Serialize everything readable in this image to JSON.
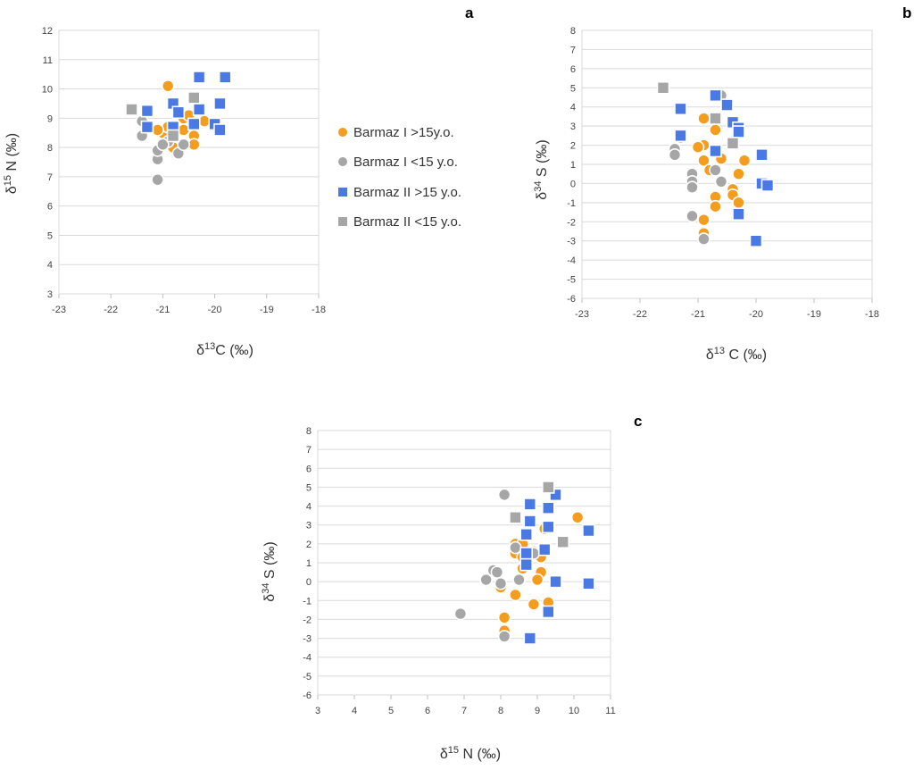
{
  "legend": {
    "items": [
      {
        "label": "Barmaz I >15y.o.",
        "color": "#F39C1E",
        "shape": "circle"
      },
      {
        "label": "Barmaz I <15 y.o.",
        "color": "#A6A6A6",
        "shape": "circle"
      },
      {
        "label": "Barmaz II >15 y.o.",
        "color": "#4A79E3",
        "shape": "square"
      },
      {
        "label": "Barmaz II <15 y.o.",
        "color": "#A6A6A6",
        "shape": "square"
      }
    ]
  },
  "chart_data": [
    {
      "panel": "a",
      "type": "scatter",
      "title": "",
      "xlabel_main": "δ",
      "xlabel_sup": "13",
      "xlabel_rest": "C (‰)",
      "ylabel_main": "δ",
      "ylabel_sup": "15",
      "ylabel_rest": " N (‰)",
      "xlim": [
        -23,
        -18
      ],
      "ylim": [
        3,
        12
      ],
      "xticks": [
        "-23",
        "-22",
        "-21",
        "-20",
        "-19",
        "-18"
      ],
      "yticks": [
        "3",
        "4",
        "5",
        "6",
        "7",
        "8",
        "9",
        "10",
        "11",
        "12"
      ],
      "series": [
        {
          "name": "Barmaz I >15y.o.",
          "points": [
            [
              -20.9,
              10.1
            ],
            [
              -21.0,
              8.5
            ],
            [
              -20.9,
              8.7
            ],
            [
              -20.8,
              8.2
            ],
            [
              -20.7,
              9.2
            ],
            [
              -20.6,
              9.0
            ],
            [
              -20.5,
              9.1
            ],
            [
              -20.4,
              8.8
            ],
            [
              -20.4,
              8.4
            ],
            [
              -20.4,
              8.1
            ],
            [
              -20.2,
              8.9
            ],
            [
              -20.6,
              8.6
            ],
            [
              -21.1,
              8.6
            ],
            [
              -20.8,
              8.0
            ]
          ]
        },
        {
          "name": "Barmaz I <15 y.o.",
          "points": [
            [
              -21.1,
              6.9
            ],
            [
              -21.1,
              7.6
            ],
            [
              -21.1,
              7.9
            ],
            [
              -21.4,
              8.4
            ],
            [
              -21.4,
              8.9
            ],
            [
              -20.9,
              8.2
            ],
            [
              -20.7,
              7.8
            ],
            [
              -20.6,
              8.1
            ],
            [
              -21.0,
              8.1
            ]
          ]
        },
        {
          "name": "Barmaz II >15 y.o.",
          "points": [
            [
              -20.3,
              10.4
            ],
            [
              -19.8,
              10.4
            ],
            [
              -20.8,
              9.5
            ],
            [
              -19.9,
              9.5
            ],
            [
              -20.7,
              9.2
            ],
            [
              -20.3,
              9.3
            ],
            [
              -21.3,
              9.25
            ],
            [
              -21.3,
              8.7
            ],
            [
              -20.8,
              8.7
            ],
            [
              -20.4,
              8.8
            ],
            [
              -20.0,
              8.8
            ],
            [
              -19.9,
              8.6
            ]
          ]
        },
        {
          "name": "Barmaz II <15 y.o.",
          "points": [
            [
              -21.6,
              9.3
            ],
            [
              -20.4,
              9.7
            ],
            [
              -20.8,
              8.4
            ]
          ]
        }
      ]
    },
    {
      "panel": "b",
      "type": "scatter",
      "title": "",
      "xlabel_main": "δ",
      "xlabel_sup": "13",
      "xlabel_rest": " C (‰)",
      "ylabel_main": "δ",
      "ylabel_sup": "34",
      "ylabel_rest": " S (‰)",
      "xlim": [
        -23,
        -18
      ],
      "ylim": [
        -6,
        8
      ],
      "xticks": [
        "-23",
        "-22",
        "-21",
        "-20",
        "-19",
        "-18"
      ],
      "yticks": [
        "-6",
        "-5",
        "-4",
        "-3",
        "-2",
        "-1",
        "0",
        "1",
        "2",
        "3",
        "4",
        "5",
        "6",
        "7",
        "8"
      ],
      "series": [
        {
          "name": "Barmaz I >15y.o.",
          "points": [
            [
              -20.9,
              3.4
            ],
            [
              -20.7,
              2.8
            ],
            [
              -20.9,
              2.0
            ],
            [
              -21.3,
              2.4
            ],
            [
              -20.6,
              1.3
            ],
            [
              -20.2,
              1.2
            ],
            [
              -20.9,
              1.2
            ],
            [
              -20.8,
              0.7
            ],
            [
              -20.3,
              0.5
            ],
            [
              -20.4,
              -0.3
            ],
            [
              -20.4,
              -0.6
            ],
            [
              -20.3,
              -1.0
            ],
            [
              -20.7,
              -0.7
            ],
            [
              -20.7,
              -1.2
            ],
            [
              -20.9,
              -1.9
            ],
            [
              -20.9,
              -2.6
            ],
            [
              -20.5,
              4.1
            ],
            [
              -21.0,
              1.9
            ]
          ]
        },
        {
          "name": "Barmaz I <15 y.o.",
          "points": [
            [
              -20.6,
              4.6
            ],
            [
              -21.4,
              1.8
            ],
            [
              -21.4,
              1.5
            ],
            [
              -21.1,
              0.5
            ],
            [
              -21.1,
              0.1
            ],
            [
              -21.1,
              -0.2
            ],
            [
              -20.7,
              0.7
            ],
            [
              -20.6,
              0.1
            ],
            [
              -21.1,
              -1.7
            ],
            [
              -20.9,
              -2.9
            ]
          ]
        },
        {
          "name": "Barmaz II >15 y.o.",
          "points": [
            [
              -20.7,
              4.6
            ],
            [
              -20.5,
              4.1
            ],
            [
              -21.3,
              3.9
            ],
            [
              -20.4,
              3.2
            ],
            [
              -20.3,
              2.9
            ],
            [
              -20.3,
              2.7
            ],
            [
              -21.3,
              2.5
            ],
            [
              -20.7,
              1.7
            ],
            [
              -19.9,
              1.5
            ],
            [
              -19.9,
              0.0
            ],
            [
              -19.8,
              -0.1
            ],
            [
              -20.3,
              -1.6
            ],
            [
              -20.0,
              -3.0
            ]
          ]
        },
        {
          "name": "Barmaz II <15 y.o.",
          "points": [
            [
              -21.6,
              5.0
            ],
            [
              -20.7,
              3.4
            ],
            [
              -20.4,
              2.1
            ]
          ]
        }
      ]
    },
    {
      "panel": "c",
      "type": "scatter",
      "title": "",
      "xlabel_main": "δ",
      "xlabel_sup": "15",
      "xlabel_rest": " N (‰)",
      "ylabel_main": "δ",
      "ylabel_sup": "34",
      "ylabel_rest": " S (‰)",
      "xlim": [
        3,
        11
      ],
      "ylim": [
        -6,
        8
      ],
      "xticks": [
        "3",
        "4",
        "5",
        "6",
        "7",
        "8",
        "9",
        "10",
        "11"
      ],
      "yticks": [
        "-6",
        "-5",
        "-4",
        "-3",
        "-2",
        "-1",
        "0",
        "1",
        "2",
        "3",
        "4",
        "5",
        "6",
        "7",
        "8"
      ],
      "series": [
        {
          "name": "Barmaz I >15y.o.",
          "points": [
            [
              10.1,
              3.4
            ],
            [
              9.2,
              2.8
            ],
            [
              8.4,
              2.0
            ],
            [
              8.6,
              2.0
            ],
            [
              8.4,
              1.5
            ],
            [
              8.6,
              1.3
            ],
            [
              9.1,
              1.3
            ],
            [
              8.6,
              0.7
            ],
            [
              9.1,
              0.5
            ],
            [
              9.0,
              0.1
            ],
            [
              8.0,
              -0.3
            ],
            [
              8.4,
              -0.7
            ],
            [
              9.3,
              -1.1
            ],
            [
              8.9,
              -1.2
            ],
            [
              8.1,
              -1.9
            ],
            [
              8.1,
              -2.6
            ],
            [
              8.9,
              1.6
            ],
            [
              8.7,
              1.0
            ]
          ]
        },
        {
          "name": "Barmaz I <15 y.o.",
          "points": [
            [
              8.1,
              4.6
            ],
            [
              8.4,
              1.8
            ],
            [
              7.8,
              0.6
            ],
            [
              7.9,
              0.5
            ],
            [
              7.6,
              0.1
            ],
            [
              8.5,
              0.1
            ],
            [
              8.0,
              -0.1
            ],
            [
              6.9,
              -1.7
            ],
            [
              8.1,
              -2.9
            ],
            [
              8.9,
              1.5
            ]
          ]
        },
        {
          "name": "Barmaz II >15 y.o.",
          "points": [
            [
              9.5,
              4.6
            ],
            [
              8.8,
              4.1
            ],
            [
              9.3,
              3.9
            ],
            [
              8.8,
              3.2
            ],
            [
              9.3,
              2.9
            ],
            [
              10.4,
              2.7
            ],
            [
              8.7,
              2.5
            ],
            [
              9.2,
              1.7
            ],
            [
              8.7,
              1.5
            ],
            [
              8.7,
              0.9
            ],
            [
              9.5,
              0.0
            ],
            [
              10.4,
              -0.1
            ],
            [
              9.3,
              -1.6
            ],
            [
              8.8,
              -3.0
            ]
          ]
        },
        {
          "name": "Barmaz II <15 y.o.",
          "points": [
            [
              9.3,
              5.0
            ],
            [
              8.4,
              3.4
            ],
            [
              9.7,
              2.1
            ]
          ]
        }
      ]
    }
  ]
}
